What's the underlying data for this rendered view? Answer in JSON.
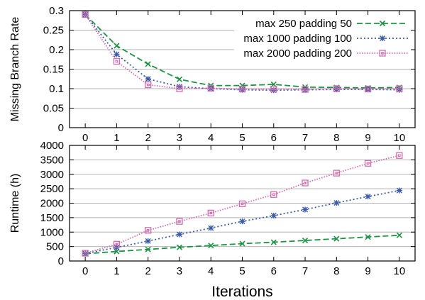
{
  "chart_data": [
    {
      "type": "line",
      "ylabel": "Missing Branch Rate",
      "xlim": [
        -0.5,
        10.5
      ],
      "ylim": [
        0,
        0.3
      ],
      "x_ticks": [
        0,
        1,
        2,
        3,
        4,
        5,
        6,
        7,
        8,
        9,
        10
      ],
      "y_ticks": [
        "0",
        "0.05",
        "0.1",
        "0.15",
        "0.2",
        "0.25",
        "0.3"
      ],
      "grid": "horizontal",
      "legend": "top-right",
      "x": [
        0,
        1,
        2,
        3,
        4,
        5,
        6,
        7,
        8,
        9,
        10
      ],
      "series": [
        {
          "name": "max 250 padding 50",
          "values": [
            0.29,
            0.21,
            0.163,
            0.124,
            0.108,
            0.108,
            0.111,
            0.104,
            0.103,
            0.102,
            0.103
          ]
        },
        {
          "name": "max 1000 padding 100",
          "values": [
            0.29,
            0.188,
            0.125,
            0.105,
            0.1,
            0.097,
            0.096,
            0.097,
            0.098,
            0.098,
            0.097
          ]
        },
        {
          "name": "max 2000 padding 200",
          "values": [
            0.29,
            0.17,
            0.11,
            0.1,
            0.101,
            0.099,
            0.099,
            0.098,
            0.1,
            0.099,
            0.1
          ]
        }
      ]
    },
    {
      "type": "line",
      "ylabel": "Runtime (h)",
      "xlabel": "Iterations",
      "xlim": [
        -0.5,
        10.5
      ],
      "ylim": [
        0,
        4000
      ],
      "x_ticks": [
        0,
        1,
        2,
        3,
        4,
        5,
        6,
        7,
        8,
        9,
        10
      ],
      "y_ticks": [
        "0",
        "500",
        "1000",
        "1500",
        "2000",
        "2500",
        "3000",
        "3500",
        "4000"
      ],
      "grid": "horizontal",
      "x": [
        0,
        1,
        2,
        3,
        4,
        5,
        6,
        7,
        8,
        9,
        10
      ],
      "series": [
        {
          "name": "max 250 padding 50",
          "values": [
            250,
            330,
            400,
            475,
            535,
            600,
            650,
            710,
            770,
            830,
            890
          ]
        },
        {
          "name": "max 1000 padding 100",
          "values": [
            260,
            470,
            690,
            920,
            1140,
            1370,
            1570,
            1780,
            2010,
            2230,
            2440
          ]
        },
        {
          "name": "max 2000 padding 200",
          "values": [
            270,
            580,
            1060,
            1370,
            1660,
            1980,
            2300,
            2700,
            3040,
            3380,
            3650
          ]
        }
      ]
    }
  ],
  "colors": {
    "series": [
      "#1a9641",
      "#3a5ba8",
      "#d46bb0"
    ],
    "grid": "#b3b3b3",
    "axis": "#000000"
  }
}
